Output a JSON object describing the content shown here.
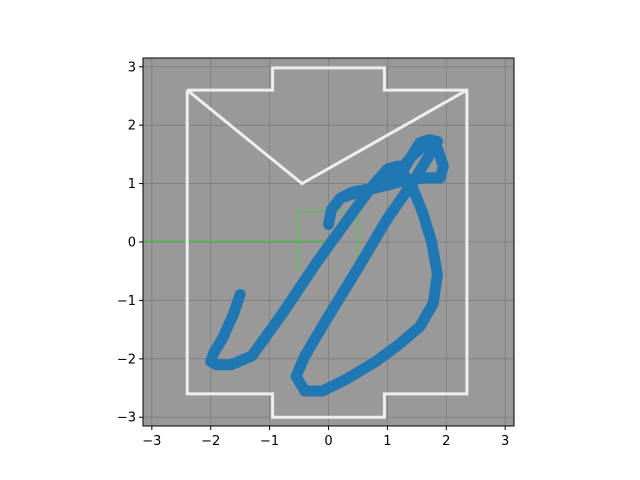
{
  "chart_data": {
    "type": "line",
    "title": "",
    "xlabel": "",
    "ylabel": "",
    "xlim": [
      -3.15,
      3.15
    ],
    "ylim": [
      -3.15,
      3.15
    ],
    "grid": true,
    "background": "#999999",
    "xticks": [
      -3,
      -2,
      -1,
      0,
      1,
      2,
      3
    ],
    "yticks": [
      -3,
      -2,
      -1,
      0,
      1,
      2,
      3
    ],
    "xtick_labels": [
      "−3",
      "−2",
      "−1",
      "0",
      "1",
      "2",
      "3"
    ],
    "ytick_labels": [
      "−3",
      "−2",
      "−1",
      "0",
      "1",
      "2",
      "3"
    ],
    "outline": {
      "color": "#eeeeee",
      "points": [
        [
          -2.4,
          2.6
        ],
        [
          -0.95,
          2.6
        ],
        [
          -0.95,
          2.98
        ],
        [
          0.95,
          2.98
        ],
        [
          0.95,
          2.6
        ],
        [
          2.35,
          2.6
        ],
        [
          2.35,
          -2.6
        ],
        [
          0.95,
          -2.6
        ],
        [
          0.95,
          -3.0
        ],
        [
          -0.95,
          -3.0
        ],
        [
          -0.95,
          -2.6
        ],
        [
          -2.4,
          -2.6
        ],
        [
          -2.4,
          2.6
        ]
      ],
      "v_shape": [
        [
          -2.4,
          2.6
        ],
        [
          -0.45,
          1.0
        ],
        [
          2.35,
          2.6
        ]
      ]
    },
    "green_box": {
      "color": "#44cc44",
      "points": [
        [
          -0.52,
          -0.5
        ],
        [
          -0.52,
          0.52
        ],
        [
          0.5,
          0.52
        ],
        [
          0.5,
          -0.5
        ]
      ]
    },
    "green_axis": {
      "color": "#44cc44",
      "points": [
        [
          -3.15,
          0.02
        ],
        [
          0.0,
          0.02
        ]
      ]
    },
    "series": [
      {
        "color": "#1f77b4",
        "x": [
          -1.5,
          -1.62,
          -1.8,
          -1.95,
          -2.0,
          -1.9,
          -1.65,
          -1.3,
          -0.8,
          -0.2,
          0.3,
          0.7,
          1.0,
          1.18,
          1.4,
          1.6,
          1.75,
          1.85,
          1.78,
          1.55,
          1.2,
          0.8,
          0.3,
          -0.1,
          -0.4,
          -0.55,
          -0.4,
          -0.05,
          0.5,
          1.0,
          1.45,
          1.72,
          1.85,
          1.72,
          1.4,
          1.15,
          0.9,
          0.65,
          0.4,
          0.2,
          0.05,
          0.0,
          0.05,
          0.2,
          0.5,
          0.9,
          1.3,
          1.65,
          1.9,
          1.95,
          1.85,
          1.7,
          1.55,
          1.4,
          1.25,
          1.1
        ],
        "y": [
          -0.9,
          -1.25,
          -1.65,
          -1.9,
          -2.05,
          -2.1,
          -2.1,
          -1.95,
          -1.25,
          -0.35,
          0.35,
          0.9,
          1.25,
          1.3,
          1.0,
          0.5,
          0.0,
          -0.55,
          -1.05,
          -1.45,
          -1.75,
          -2.05,
          -2.35,
          -2.55,
          -2.55,
          -2.3,
          -1.95,
          -1.35,
          -0.45,
          0.4,
          1.05,
          1.5,
          1.72,
          1.75,
          1.45,
          1.15,
          0.95,
          0.9,
          0.85,
          0.75,
          0.55,
          0.3,
          0.55,
          0.75,
          0.85,
          0.95,
          1.05,
          1.1,
          1.1,
          1.3,
          1.6,
          1.75,
          1.7,
          1.45,
          1.2,
          1.05
        ]
      }
    ]
  }
}
